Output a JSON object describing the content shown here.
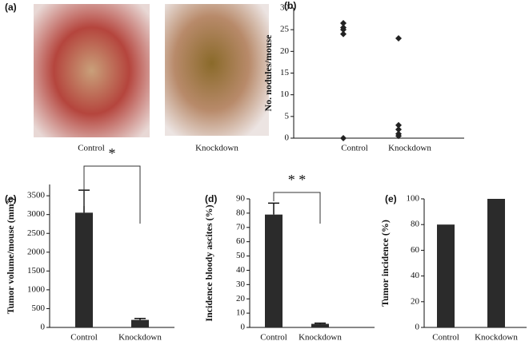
{
  "photo_panel": {
    "label": "(a)",
    "captions": [
      "Control",
      "Knockdown"
    ]
  },
  "chart_data": [
    {
      "type": "scatter",
      "panel_label": "(b)",
      "y_label": "No. nodules/mouse",
      "categories": [
        "Control",
        "Knockdown"
      ],
      "values": [
        [
          26.5,
          25.5,
          25,
          24,
          0
        ],
        [
          23,
          3,
          2,
          1,
          0.5
        ]
      ],
      "ylim": [
        0,
        30
      ],
      "yticks": [
        0,
        5,
        10,
        15,
        20,
        25,
        30
      ],
      "color": "#222222"
    },
    {
      "type": "bar",
      "panel_label": "(c)",
      "y_label": "Tumor volume/mouse (mm³)",
      "categories": [
        "Control",
        "Knockdown"
      ],
      "values": [
        3050,
        200
      ],
      "errors": [
        600,
        40
      ],
      "annotation": "*",
      "ylim": [
        0,
        3800
      ],
      "yticks": [
        0,
        500,
        1000,
        1500,
        2000,
        2500,
        3000,
        3500
      ],
      "color": "#2b2b2b"
    },
    {
      "type": "bar",
      "panel_label": "(d)",
      "y_label": "Incidence bloody ascites (%)",
      "categories": [
        "Control",
        "Knockdown"
      ],
      "values": [
        79,
        2.5
      ],
      "errors": [
        8,
        0.5
      ],
      "annotation": "* *",
      "ylim": [
        0,
        90
      ],
      "yticks": [
        0,
        10,
        20,
        30,
        40,
        50,
        60,
        70,
        80,
        90
      ],
      "color": "#2b2b2b"
    },
    {
      "type": "bar",
      "panel_label": "(e)",
      "y_label": "Tumor incidence (%)",
      "categories": [
        "Control",
        "Knockdown"
      ],
      "values": [
        80,
        100
      ],
      "ylim": [
        0,
        100
      ],
      "yticks": [
        0,
        20,
        40,
        60,
        80,
        100
      ],
      "color": "#2b2b2b"
    }
  ]
}
